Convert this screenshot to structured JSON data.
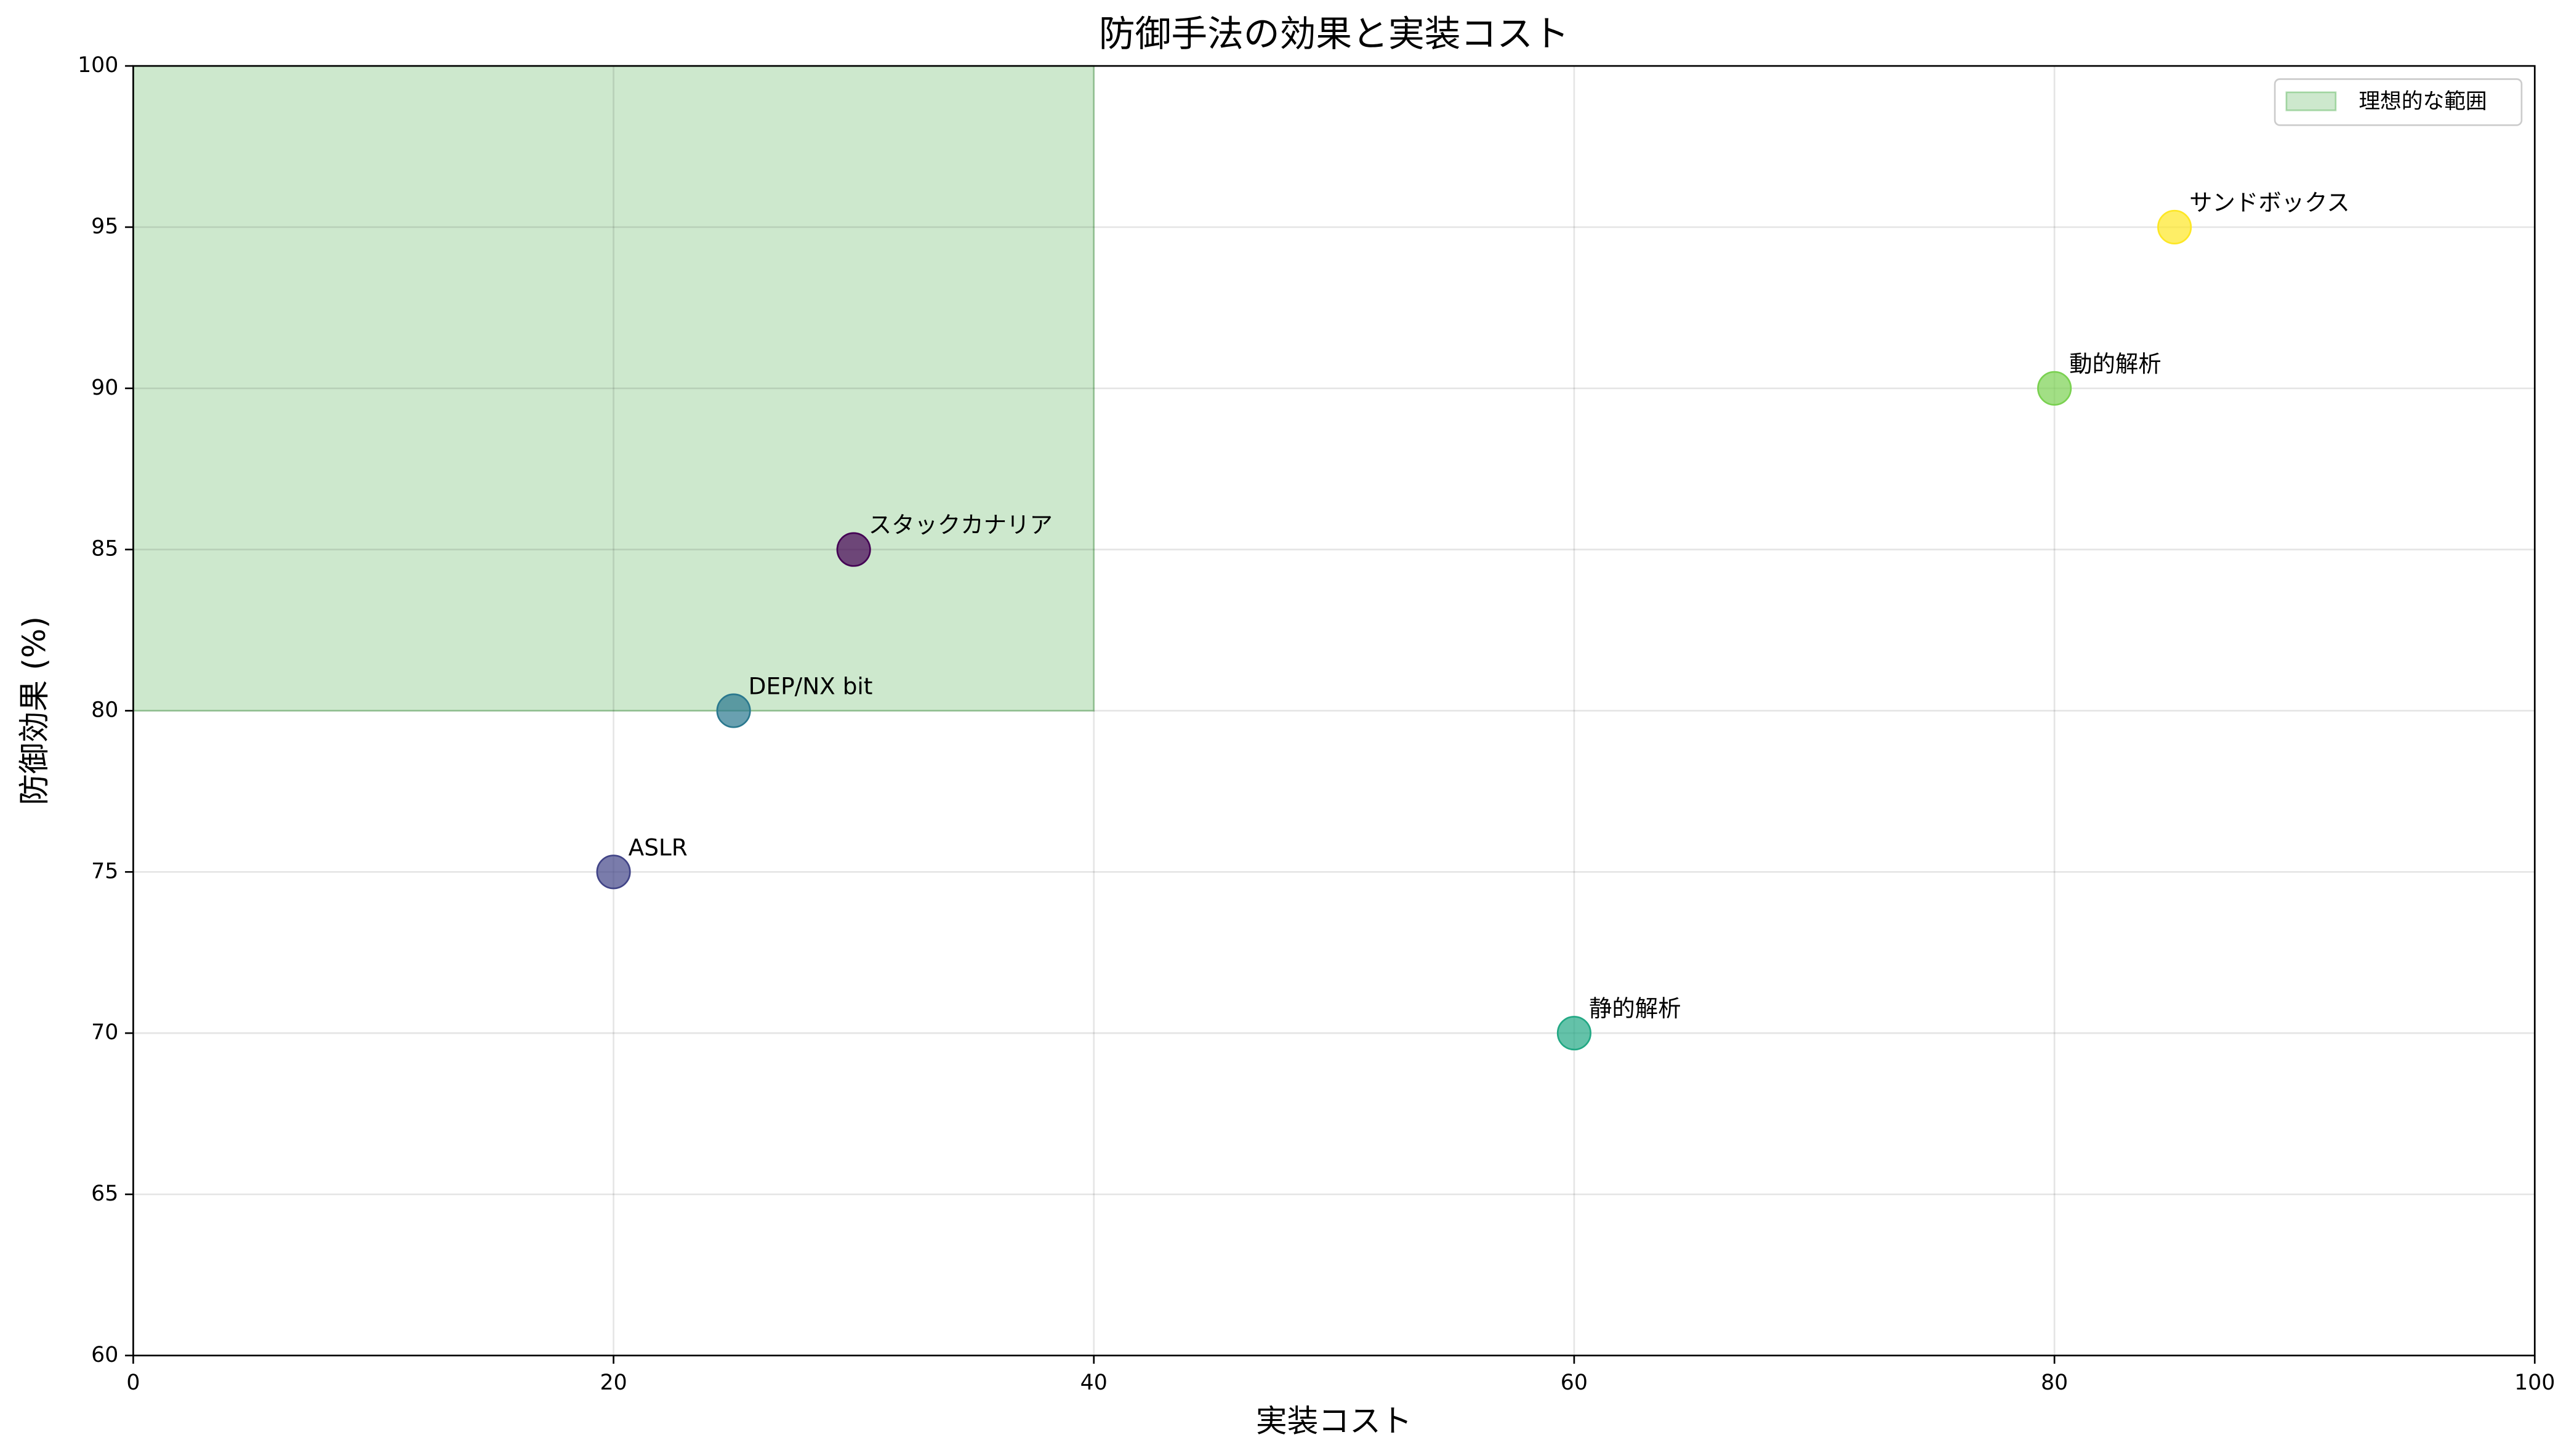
{
  "chart_data": {
    "type": "scatter",
    "title": "防御手法の効果と実装コスト",
    "xlabel": "実装コスト",
    "ylabel": "防御効果 (%)",
    "labels": [
      "スタックカナリア",
      "ASLR",
      "DEP/NX bit",
      "静的解析",
      "動的解析",
      "サンドボックス"
    ],
    "x": [
      30,
      20,
      25,
      60,
      80,
      85
    ],
    "values": [
      85,
      75,
      80,
      70,
      90,
      95
    ],
    "colors": [
      "#440154",
      "#414487",
      "#2a788e",
      "#22a884",
      "#7ad151",
      "#fde725"
    ],
    "xlim": [
      0,
      100
    ],
    "ylim": [
      60,
      100
    ],
    "xticks": [
      0,
      20,
      40,
      60,
      80,
      100
    ],
    "yticks": [
      60,
      65,
      70,
      75,
      80,
      85,
      90,
      95,
      100
    ],
    "grid": true,
    "region": {
      "name": "理想的な範囲",
      "color": "#2ca02c",
      "x": [
        0,
        40
      ],
      "y": [
        80,
        100
      ]
    },
    "legend": "upper right"
  }
}
